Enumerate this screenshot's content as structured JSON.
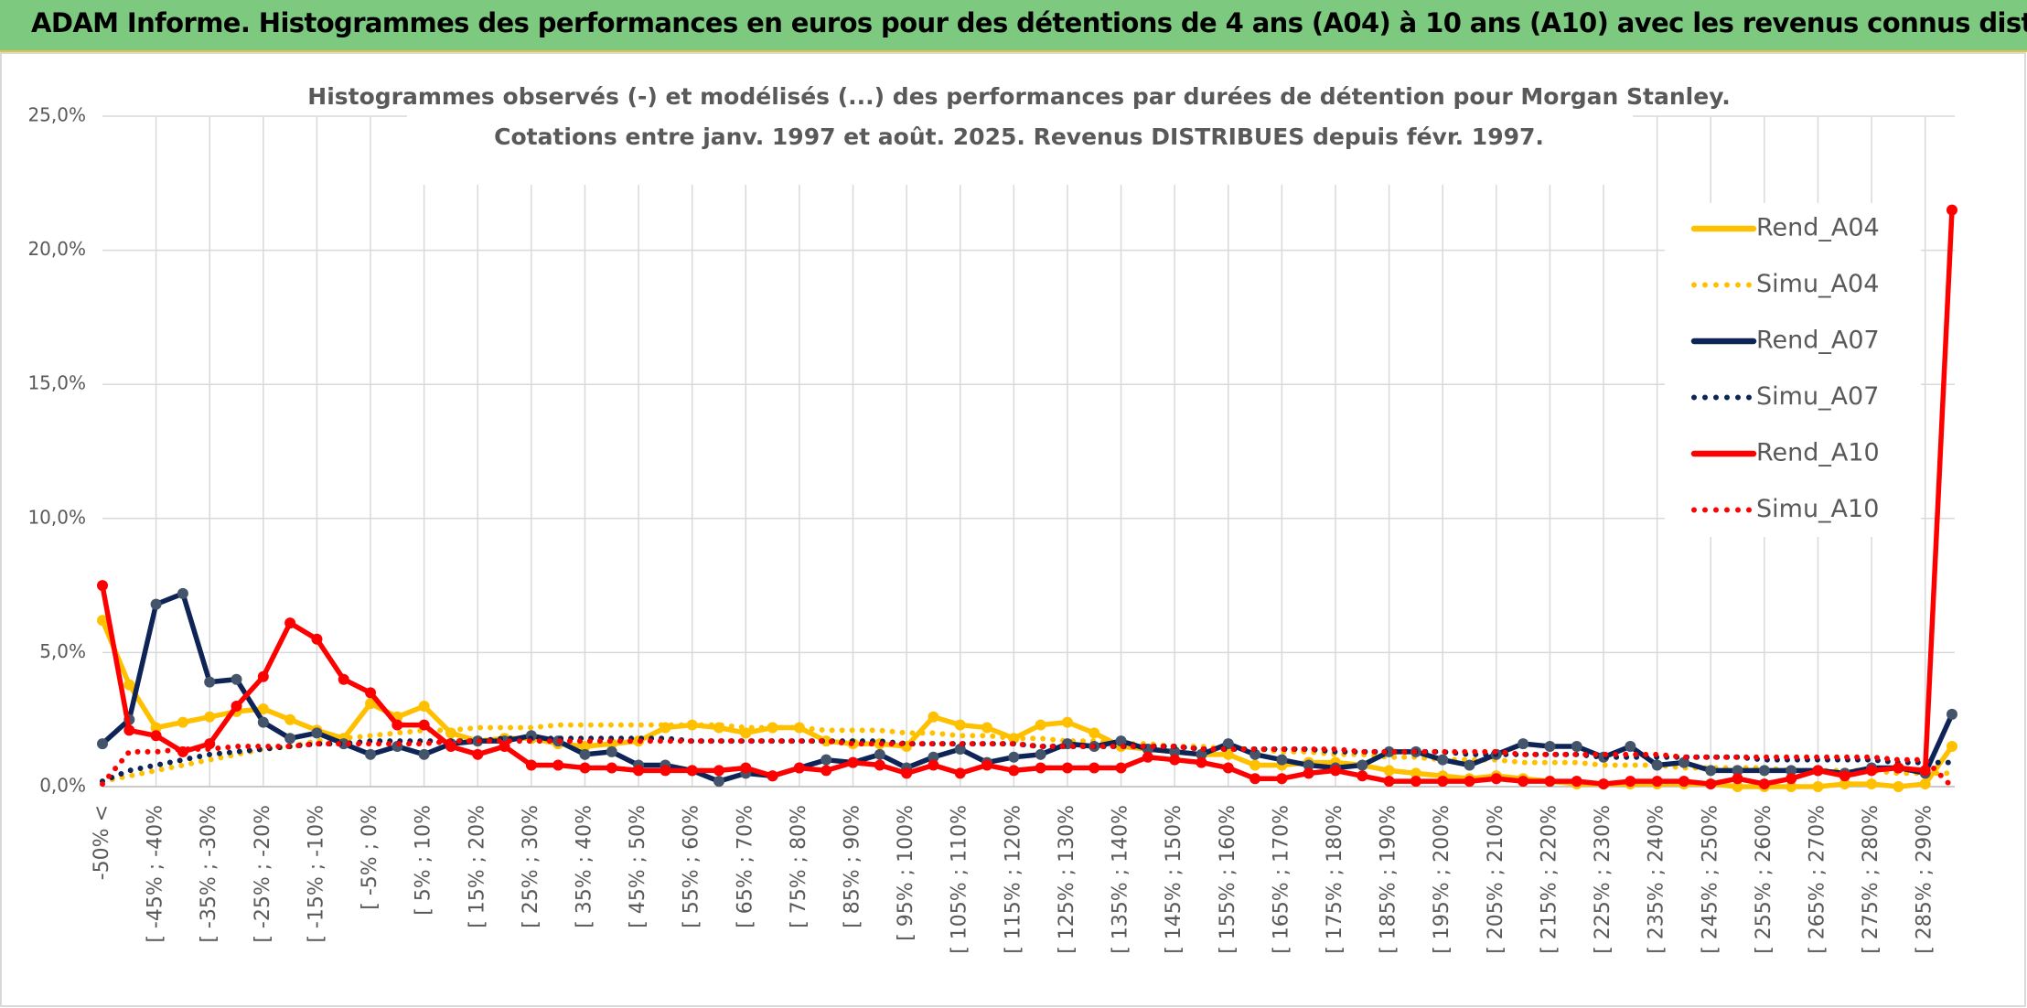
{
  "header": {
    "title": "ADAM Informe. Histogrammes des performances en euros pour des détentions de 4 ans (A04) à 10 ans (A10) avec les revenus connus distribués"
  },
  "chart_data": {
    "type": "line",
    "title": "Histogrammes observés (-) et modélisés (...) des performances par durées de détention pour Morgan Stanley.",
    "subtitle": "Cotations entre janv. 1997 et août. 2025. Revenus DISTRIBUES depuis févr. 1997.",
    "categories": [
      "-50% <",
      null,
      "[ -45% ; -40%",
      null,
      "[ -35% ; -30%",
      null,
      "[ -25% ; -20%",
      null,
      "[ -15% ; -10%",
      null,
      "[ -5% ; 0%",
      null,
      "[ 5% ; 10%",
      null,
      "[ 15% ; 20%",
      null,
      "[ 25% ; 30%",
      null,
      "[ 35% ; 40%",
      null,
      "[ 45% ; 50%",
      null,
      "[ 55% ; 60%",
      null,
      "[ 65% ; 70%",
      null,
      "[ 75% ; 80%",
      null,
      "[ 85% ; 90%",
      null,
      "[ 95% ; 100%",
      null,
      "[ 105% ; 110%",
      null,
      "[ 115% ; 120%",
      null,
      "[ 125% ; 130%",
      null,
      "[ 135% ; 140%",
      null,
      "[ 145% ; 150%",
      null,
      "[ 155% ; 160%",
      null,
      "[ 165% ; 170%",
      null,
      "[ 175% ; 180%",
      null,
      "[ 185% ; 190%",
      null,
      "[ 195% ; 200%",
      null,
      "[ 205% ; 210%",
      null,
      "[ 215% ; 220%",
      null,
      "[ 225% ; 230%",
      null,
      "[ 235% ; 240%",
      null,
      "[ 245% ; 250%",
      null,
      "[ 255% ; 260%",
      null,
      "[ 265% ; 270%",
      null,
      "[ 275% ; 280%",
      null,
      "[ 285% ; 290%",
      null
    ],
    "series": [
      {
        "name": "Rend_A04",
        "color": "#ffc000",
        "style": "solid",
        "marker": true,
        "values": [
          6.2,
          3.8,
          2.2,
          2.4,
          2.6,
          2.8,
          2.9,
          2.5,
          2.1,
          1.8,
          3.1,
          2.6,
          3.0,
          2.0,
          1.7,
          1.8,
          1.8,
          1.6,
          1.5,
          1.6,
          1.7,
          2.2,
          2.3,
          2.2,
          2.0,
          2.2,
          2.2,
          1.7,
          1.6,
          1.6,
          1.5,
          2.6,
          2.3,
          2.2,
          1.8,
          2.3,
          2.4,
          2.0,
          1.5,
          1.4,
          1.3,
          1.2,
          1.2,
          0.8,
          0.8,
          0.9,
          0.9,
          0.8,
          0.6,
          0.5,
          0.4,
          0.3,
          0.4,
          0.3,
          0.2,
          0.1,
          0.1,
          0.1,
          0.1,
          0.1,
          0.1,
          0.0,
          0.0,
          0.0,
          0.0,
          0.1,
          0.1,
          0.0,
          0.1,
          1.5
        ]
      },
      {
        "name": "Simu_A04",
        "color": "#ffc000",
        "style": "dotted",
        "marker": false,
        "values": [
          0.2,
          0.4,
          0.6,
          0.8,
          1.0,
          1.2,
          1.4,
          1.5,
          1.7,
          1.8,
          1.9,
          2.0,
          2.1,
          2.1,
          2.2,
          2.2,
          2.2,
          2.3,
          2.3,
          2.3,
          2.3,
          2.3,
          2.3,
          2.3,
          2.2,
          2.2,
          2.2,
          2.1,
          2.1,
          2.1,
          2.0,
          2.0,
          1.9,
          1.9,
          1.8,
          1.8,
          1.7,
          1.7,
          1.6,
          1.6,
          1.5,
          1.5,
          1.4,
          1.4,
          1.3,
          1.3,
          1.2,
          1.2,
          1.1,
          1.1,
          1.0,
          1.0,
          1.0,
          0.9,
          0.9,
          0.9,
          0.8,
          0.8,
          0.8,
          0.7,
          0.7,
          0.7,
          0.7,
          0.6,
          0.6,
          0.6,
          0.6,
          0.5,
          0.5,
          0.5
        ]
      },
      {
        "name": "Rend_A07",
        "color": "#0e2356",
        "style": "solid",
        "marker": true,
        "values": [
          1.6,
          2.5,
          6.8,
          7.2,
          3.9,
          4.0,
          2.4,
          1.8,
          2.0,
          1.6,
          1.2,
          1.5,
          1.2,
          1.6,
          1.7,
          1.7,
          1.9,
          1.7,
          1.2,
          1.3,
          0.8,
          0.8,
          0.6,
          0.2,
          0.5,
          0.4,
          0.7,
          1.0,
          0.9,
          1.2,
          0.7,
          1.1,
          1.4,
          0.9,
          1.1,
          1.2,
          1.6,
          1.5,
          1.7,
          1.4,
          1.3,
          1.2,
          1.6,
          1.2,
          1.0,
          0.8,
          0.7,
          0.8,
          1.3,
          1.3,
          1.0,
          0.8,
          1.2,
          1.6,
          1.5,
          1.5,
          1.1,
          1.5,
          0.8,
          0.9,
          0.6,
          0.6,
          0.6,
          0.6,
          0.6,
          0.5,
          0.7,
          0.7,
          0.5,
          2.7
        ]
      },
      {
        "name": "Simu_A07",
        "color": "#0e2356",
        "style": "dotted",
        "marker": false,
        "values": [
          0.2,
          0.6,
          0.8,
          1.0,
          1.2,
          1.3,
          1.4,
          1.5,
          1.6,
          1.6,
          1.7,
          1.7,
          1.7,
          1.7,
          1.7,
          1.8,
          1.8,
          1.8,
          1.8,
          1.8,
          1.8,
          1.8,
          1.7,
          1.7,
          1.7,
          1.7,
          1.7,
          1.7,
          1.7,
          1.7,
          1.6,
          1.6,
          1.6,
          1.6,
          1.6,
          1.5,
          1.5,
          1.5,
          1.5,
          1.5,
          1.5,
          1.4,
          1.4,
          1.4,
          1.4,
          1.4,
          1.3,
          1.3,
          1.3,
          1.3,
          1.3,
          1.2,
          1.2,
          1.2,
          1.2,
          1.2,
          1.1,
          1.1,
          1.1,
          1.1,
          1.1,
          1.1,
          1.0,
          1.0,
          1.0,
          1.0,
          1.0,
          0.9,
          0.9,
          0.9
        ]
      },
      {
        "name": "Rend_A10",
        "color": "#ff0000",
        "style": "solid",
        "marker": true,
        "values": [
          7.5,
          2.1,
          1.9,
          1.3,
          1.6,
          3.0,
          4.1,
          6.1,
          5.5,
          4.0,
          3.5,
          2.3,
          2.3,
          1.5,
          1.2,
          1.5,
          0.8,
          0.8,
          0.7,
          0.7,
          0.6,
          0.6,
          0.6,
          0.6,
          0.7,
          0.4,
          0.7,
          0.6,
          0.9,
          0.8,
          0.5,
          0.8,
          0.5,
          0.8,
          0.6,
          0.7,
          0.7,
          0.7,
          0.7,
          1.1,
          1.0,
          0.9,
          0.7,
          0.3,
          0.3,
          0.5,
          0.6,
          0.4,
          0.2,
          0.2,
          0.2,
          0.2,
          0.3,
          0.2,
          0.2,
          0.2,
          0.1,
          0.2,
          0.2,
          0.2,
          0.1,
          0.3,
          0.1,
          0.3,
          0.6,
          0.4,
          0.6,
          0.7,
          0.6,
          21.5
        ]
      },
      {
        "name": "Simu_A10",
        "color": "#ff0000",
        "style": "dotted",
        "marker": false,
        "values": [
          0.1,
          1.3,
          1.3,
          1.4,
          1.4,
          1.5,
          1.5,
          1.5,
          1.6,
          1.6,
          1.6,
          1.6,
          1.6,
          1.7,
          1.7,
          1.7,
          1.7,
          1.7,
          1.7,
          1.7,
          1.7,
          1.7,
          1.7,
          1.7,
          1.7,
          1.7,
          1.7,
          1.7,
          1.6,
          1.6,
          1.6,
          1.6,
          1.6,
          1.6,
          1.6,
          1.5,
          1.5,
          1.5,
          1.5,
          1.5,
          1.5,
          1.4,
          1.4,
          1.4,
          1.4,
          1.4,
          1.4,
          1.3,
          1.3,
          1.3,
          1.3,
          1.3,
          1.3,
          1.2,
          1.2,
          1.2,
          1.2,
          1.2,
          1.2,
          1.1,
          1.1,
          1.1,
          1.1,
          1.1,
          1.1,
          1.1,
          1.1,
          1.0,
          1.0,
          0.0
        ]
      }
    ],
    "ylim": [
      0,
      25
    ],
    "yticks": [
      {
        "value": 0,
        "label": "0,0%"
      },
      {
        "value": 5,
        "label": "5,0%"
      },
      {
        "value": 10,
        "label": "10,0%"
      },
      {
        "value": 15,
        "label": "15,0%"
      },
      {
        "value": 20,
        "label": "20,0%"
      },
      {
        "value": 25,
        "label": "25,0%"
      }
    ],
    "grid": true,
    "legend": "right"
  }
}
